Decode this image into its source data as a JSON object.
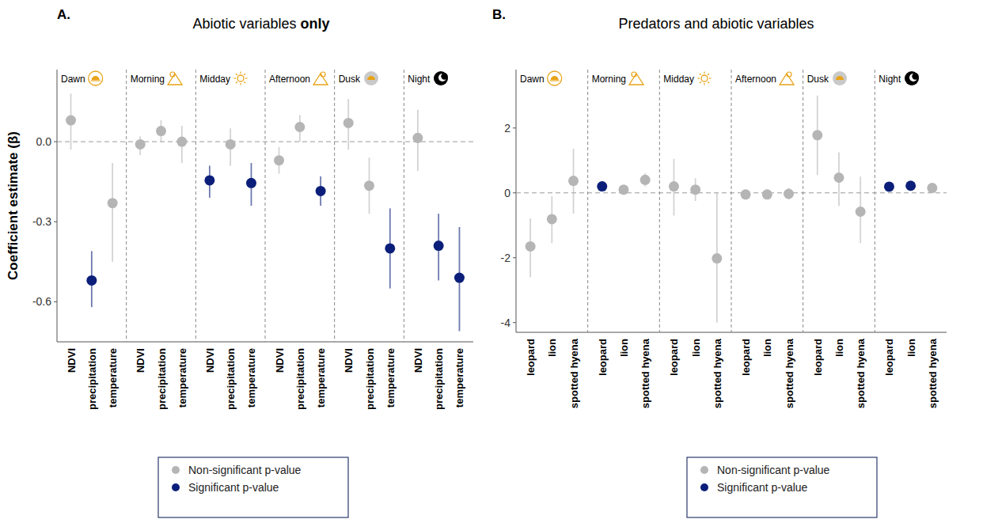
{
  "chart_data": [
    {
      "type": "dot_whisker",
      "panel_label": "A.",
      "title": "Abiotic variables only",
      "y_label": "Coefficient estimate (β)",
      "categories": [
        "NDVI",
        "precipitation",
        "temperature"
      ],
      "ylim": [
        -0.75,
        0.27
      ],
      "yticks": [
        {
          "value": 0,
          "label": "0.0"
        },
        -0.3,
        -0.6
      ],
      "grid": false,
      "legend": "bottom",
      "legend_entries": [
        {
          "name": "Non-significant p-value",
          "color": "#b5b5b5"
        },
        {
          "name": "Significant p-value",
          "color": "#0b1f7a"
        }
      ],
      "series": [
        {
          "name": "Dawn",
          "values": [
            0.08,
            -0.52,
            -0.23
          ],
          "ci_low": [
            -0.03,
            -0.62,
            -0.45
          ],
          "ci_high": [
            0.18,
            -0.41,
            -0.08
          ],
          "significant": [
            false,
            true,
            false
          ]
        },
        {
          "name": "Morning",
          "values": [
            -0.01,
            0.04,
            0.0
          ],
          "ci_low": [
            -0.05,
            0.0,
            -0.08
          ],
          "ci_high": [
            0.02,
            0.08,
            0.06
          ],
          "significant": [
            false,
            false,
            false
          ]
        },
        {
          "name": "Midday",
          "values": [
            -0.145,
            -0.01,
            -0.155
          ],
          "ci_low": [
            -0.21,
            -0.09,
            -0.24
          ],
          "ci_high": [
            -0.09,
            0.05,
            -0.08
          ],
          "significant": [
            true,
            false,
            true
          ]
        },
        {
          "name": "Afternoon",
          "values": [
            -0.07,
            0.055,
            -0.185
          ],
          "ci_low": [
            -0.12,
            0.0,
            -0.24
          ],
          "ci_high": [
            -0.02,
            0.1,
            -0.13
          ],
          "significant": [
            false,
            false,
            true
          ]
        },
        {
          "name": "Dusk",
          "values": [
            0.07,
            -0.165,
            -0.4
          ],
          "ci_low": [
            -0.03,
            -0.27,
            -0.55
          ],
          "ci_high": [
            0.16,
            -0.06,
            -0.25
          ],
          "significant": [
            false,
            false,
            true
          ]
        },
        {
          "name": "Night",
          "values": [
            0.014,
            -0.39,
            -0.51
          ],
          "ci_low": [
            -0.11,
            -0.52,
            -0.71
          ],
          "ci_high": [
            0.12,
            -0.27,
            -0.32
          ],
          "significant": [
            false,
            true,
            true
          ]
        }
      ]
    },
    {
      "type": "dot_whisker",
      "panel_label": "B.",
      "title": "Predators and abiotic variables",
      "categories": [
        "leopard",
        "lion",
        "spotted hyena"
      ],
      "ylim": [
        -4.3,
        3.8
      ],
      "yticks": [
        2,
        0,
        -2,
        -4
      ],
      "grid": false,
      "legend": "bottom",
      "legend_entries": [
        {
          "name": "Non-significant p-value",
          "color": "#b5b5b5"
        },
        {
          "name": "Significant p-value",
          "color": "#0b1f7a"
        }
      ],
      "series": [
        {
          "name": "Dawn",
          "values": [
            -1.65,
            -0.81,
            0.37
          ],
          "ci_low": [
            -2.6,
            -1.55,
            -0.64
          ],
          "ci_high": [
            -0.79,
            -0.1,
            1.36
          ],
          "significant": [
            false,
            false,
            false
          ]
        },
        {
          "name": "Morning",
          "values": [
            0.2,
            0.1,
            0.4
          ],
          "ci_low": [
            0.1,
            0.0,
            0.2
          ],
          "ci_high": [
            0.3,
            0.2,
            0.6
          ],
          "significant": [
            true,
            false,
            false
          ]
        },
        {
          "name": "Midday",
          "values": [
            0.2,
            0.1,
            -2.02
          ],
          "ci_low": [
            -0.7,
            -0.25,
            -4.0
          ],
          "ci_high": [
            1.05,
            0.45,
            0.0
          ],
          "significant": [
            false,
            false,
            false
          ]
        },
        {
          "name": "Afternoon",
          "values": [
            -0.05,
            -0.05,
            -0.03
          ],
          "ci_low": [
            -0.2,
            -0.2,
            -0.2
          ],
          "ci_high": [
            0.1,
            0.1,
            0.15
          ],
          "significant": [
            false,
            false,
            false
          ]
        },
        {
          "name": "Dusk",
          "values": [
            1.78,
            0.47,
            -0.58
          ],
          "ci_low": [
            0.55,
            -0.4,
            -1.55
          ],
          "ci_high": [
            3.0,
            1.25,
            0.5
          ],
          "significant": [
            false,
            false,
            false
          ]
        },
        {
          "name": "Night",
          "values": [
            0.19,
            0.22,
            0.15
          ],
          "ci_low": [
            0.1,
            0.12,
            0.05
          ],
          "ci_high": [
            0.3,
            0.32,
            0.25
          ],
          "significant": [
            true,
            true,
            false
          ]
        }
      ]
    }
  ]
}
